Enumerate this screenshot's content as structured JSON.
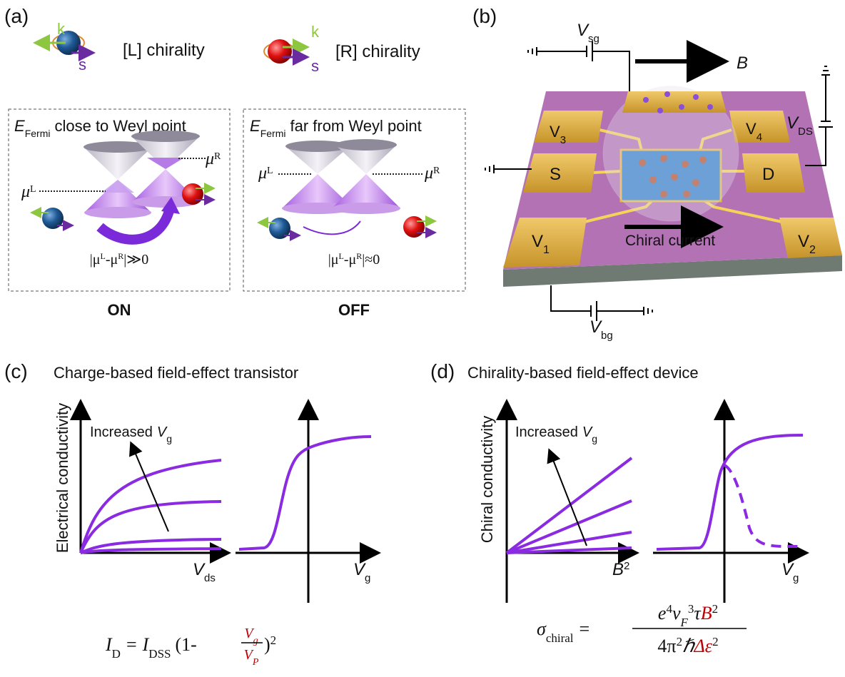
{
  "panel_a": {
    "label": "(a)",
    "chirality_legend": [
      {
        "momentum": "k",
        "spin": "s",
        "text": "[L] chirality"
      },
      {
        "momentum": "k",
        "spin": "s",
        "text": "[R] chirality"
      }
    ],
    "boxes": [
      {
        "title": {
          "symbol": "E",
          "subscript": "Fermi",
          "text": "close to Weyl point"
        },
        "mu_left": {
          "symbol": "μ",
          "superscript": "L"
        },
        "mu_right": {
          "symbol": "μ",
          "superscript": "R"
        },
        "condition": {
          "bar_open": "|μ",
          "sup_left": "L",
          "minus": "-μ",
          "sup_right": "R",
          "bar_close": "|≫0"
        },
        "state": "ON"
      },
      {
        "title": {
          "symbol": "E",
          "subscript": "Fermi",
          "text": "far from Weyl point"
        },
        "mu_left": {
          "symbol": "μ",
          "superscript": "L"
        },
        "mu_right": {
          "symbol": "μ",
          "superscript": "R"
        },
        "condition": {
          "bar_open": "|μ",
          "sup_left": "L",
          "minus": "-μ",
          "sup_right": "R",
          "bar_close": "|≈0"
        },
        "state": "OFF"
      }
    ]
  },
  "panel_b": {
    "label": "(b)",
    "gate_voltage": {
      "symbol": "V",
      "subscript": "sg"
    },
    "field": "B",
    "drain_voltage": {
      "symbol": "V",
      "subscript": "DS"
    },
    "back_gate_voltage": {
      "symbol": "V",
      "subscript": "bg"
    },
    "electrodes": {
      "v3": {
        "symbol": "V",
        "subscript": "3"
      },
      "v4": {
        "symbol": "V",
        "subscript": "4"
      },
      "source": "S",
      "drain": "D",
      "v1": {
        "symbol": "V",
        "subscript": "1"
      },
      "v2": {
        "symbol": "V",
        "subscript": "2"
      }
    },
    "current": "Chiral current"
  },
  "panel_c": {
    "label": "(c)",
    "title": "Charge-based field-effect transistor",
    "y_axis": "Electrical conductivity",
    "arrow": {
      "text": "Increased",
      "symbol": "V",
      "subscript": "g"
    },
    "x_axis_left": {
      "symbol": "V",
      "subscript": "ds"
    },
    "x_axis_right": {
      "symbol": "V",
      "subscript": "g"
    },
    "formula": {
      "lhs": "I",
      "lhs_sub": "D",
      "equals": "=",
      "current": "I",
      "current_sub": "DSS",
      "open": "(1-",
      "num": "V",
      "num_sub": "g",
      "den": "V",
      "den_sub": "P",
      "close": ")",
      "power": "2"
    }
  },
  "panel_d": {
    "label": "(d)",
    "title": "Chirality-based field-effect device",
    "y_axis": "Chiral conductivity",
    "arrow": {
      "text": "Increased",
      "symbol": "V",
      "subscript": "g"
    },
    "x_axis_left": {
      "symbol": "B",
      "superscript": "2"
    },
    "x_axis_right": {
      "symbol": "V",
      "subscript": "g"
    },
    "formula": {
      "lhs": "σ",
      "lhs_sub": "chiral",
      "equals": "=",
      "charge": "e",
      "charge_pow": "4",
      "velocity": "ν",
      "velocity_sub": "F",
      "velocity_pow": "3",
      "time": "τ",
      "field": "B",
      "field_pow": "2",
      "den_coeff": "4π",
      "den_coeff_pow": "2",
      "hbar": "ℏ",
      "gap": "Δε",
      "gap_pow": "2"
    }
  }
}
